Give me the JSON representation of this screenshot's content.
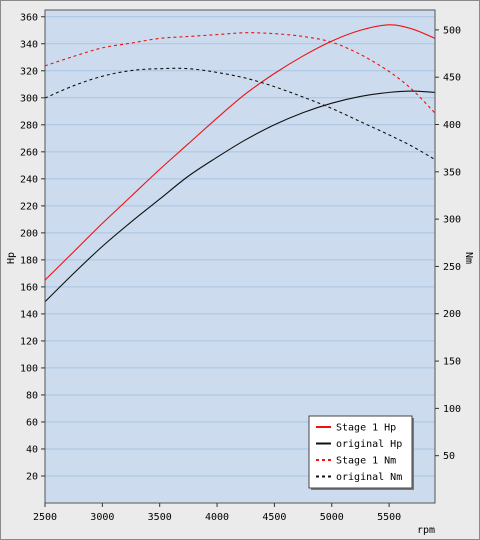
{
  "chart_data": {
    "type": "line",
    "xlabel": "rpm",
    "y_left_label": "Hp",
    "y_right_label": "Nm",
    "xlim": [
      2500,
      5900
    ],
    "ylim_left": [
      0,
      365
    ],
    "ylim_right": [
      0,
      521
    ],
    "x_ticks": [
      2500,
      3000,
      3500,
      4000,
      4500,
      5000,
      5500
    ],
    "y_left_ticks": [
      20,
      40,
      60,
      80,
      100,
      120,
      140,
      160,
      180,
      200,
      220,
      240,
      260,
      280,
      300,
      320,
      340,
      360
    ],
    "y_right_ticks": [
      50,
      100,
      150,
      200,
      250,
      300,
      350,
      400,
      450,
      500
    ],
    "grid": true,
    "legend_position": "bottom-right",
    "colors": {
      "plot_bg": "#ccdcee",
      "grid": "#a9c4e0",
      "stage1": "#ee1111",
      "original": "#111111"
    },
    "series": [
      {
        "name": "Stage 1 Hp",
        "axis": "left",
        "color": "#ee1111",
        "dash": "solid",
        "x": [
          2500,
          2750,
          3000,
          3250,
          3500,
          3750,
          4000,
          4250,
          4500,
          4750,
          5000,
          5250,
          5500,
          5700,
          5900
        ],
        "y": [
          165,
          186,
          207,
          227,
          247,
          266,
          285,
          303,
          318,
          331,
          342,
          350,
          354,
          351,
          344
        ]
      },
      {
        "name": "original Hp",
        "axis": "left",
        "color": "#111111",
        "dash": "solid",
        "x": [
          2500,
          2750,
          3000,
          3250,
          3500,
          3750,
          4000,
          4250,
          4500,
          4750,
          5000,
          5250,
          5500,
          5700,
          5900
        ],
        "y": [
          149,
          170,
          190,
          208,
          225,
          242,
          256,
          269,
          280,
          289,
          296,
          301,
          304,
          305,
          304
        ]
      },
      {
        "name": "Stage 1 Nm",
        "axis": "right",
        "color": "#ee1111",
        "dash": "dashed",
        "x": [
          2500,
          2750,
          3000,
          3250,
          3500,
          3750,
          4000,
          4250,
          4500,
          4750,
          5000,
          5250,
          5500,
          5700,
          5900
        ],
        "y": [
          462,
          472,
          481,
          486,
          491,
          493,
          495,
          497,
          496,
          493,
          487,
          474,
          456,
          437,
          412
        ]
      },
      {
        "name": "original Nm",
        "axis": "right",
        "color": "#111111",
        "dash": "dashed",
        "x": [
          2500,
          2750,
          3000,
          3250,
          3500,
          3750,
          4000,
          4250,
          4500,
          4750,
          5000,
          5250,
          5500,
          5700,
          5900
        ],
        "y": [
          428,
          441,
          451,
          457,
          459,
          459,
          455,
          449,
          440,
          429,
          417,
          403,
          389,
          377,
          363
        ]
      }
    ]
  }
}
